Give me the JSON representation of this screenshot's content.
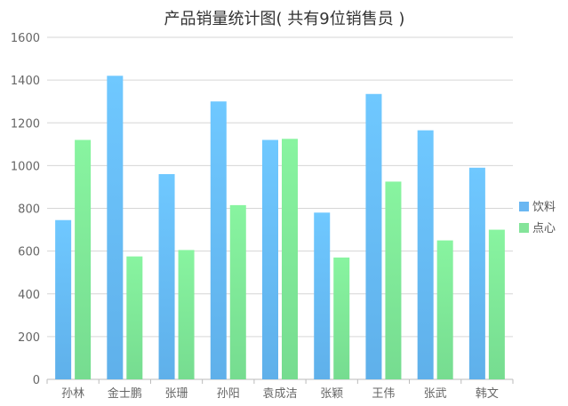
{
  "chart_data": {
    "type": "bar",
    "title": "产品销量统计图( 共有9位销售员 )",
    "categories": [
      "孙林",
      "金士鹏",
      "张珊",
      "孙阳",
      "袁成洁",
      "张颖",
      "王伟",
      "张武",
      "韩文"
    ],
    "series": [
      {
        "name": "饮料",
        "values": [
          745,
          1420,
          960,
          1300,
          1120,
          780,
          1335,
          1165,
          990
        ],
        "color": "#6ab7f2"
      },
      {
        "name": "点心",
        "values": [
          1120,
          575,
          605,
          815,
          1125,
          570,
          925,
          650,
          700
        ],
        "color": "#84e49a"
      }
    ],
    "yticks": [
      0,
      200,
      400,
      600,
      800,
      1000,
      1200,
      1400,
      1600
    ],
    "ylim": [
      0,
      1600
    ],
    "grid": true,
    "legend_position": "right"
  }
}
